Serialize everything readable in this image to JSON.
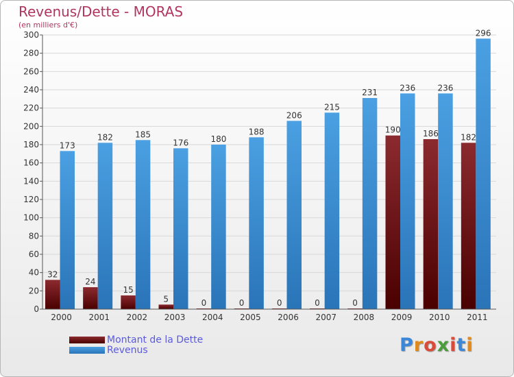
{
  "title": "Revenus/Dette - MORAS",
  "subtitle": "(en milliers d'€)",
  "logo_text": "Proxiti",
  "chart_data": {
    "type": "bar",
    "categories": [
      "2000",
      "2001",
      "2002",
      "2003",
      "2004",
      "2005",
      "2006",
      "2007",
      "2008",
      "2009",
      "2010",
      "2011"
    ],
    "series": [
      {
        "name": "Montant de la Dette",
        "values": [
          32,
          24,
          15,
          5,
          0,
          0,
          0,
          0,
          0,
          190,
          186,
          182
        ],
        "color": "#8b2a2f"
      },
      {
        "name": "Revenus",
        "values": [
          173,
          182,
          185,
          176,
          180,
          188,
          206,
          215,
          231,
          236,
          236,
          296
        ],
        "color": "#4aa0e2"
      }
    ],
    "ylim": [
      0,
      300
    ],
    "yticks": [
      0,
      20,
      40,
      60,
      80,
      100,
      120,
      140,
      160,
      180,
      200,
      220,
      240,
      260,
      280,
      300
    ],
    "grid": true,
    "legend_position": "bottom-left"
  }
}
